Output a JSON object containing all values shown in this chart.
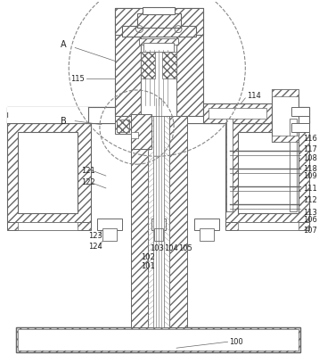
{
  "lc": "#666666",
  "lw": 0.7,
  "fs": 6.0,
  "bg": "white",
  "hatch_lc": "#777777"
}
